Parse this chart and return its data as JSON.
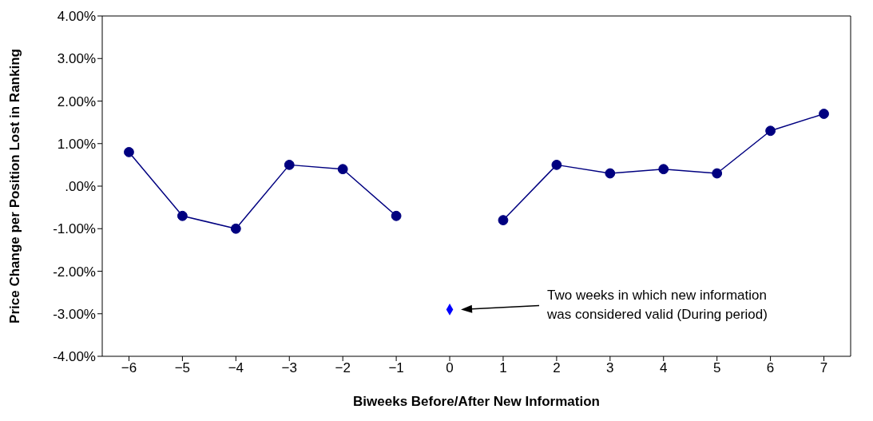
{
  "chart_data": {
    "type": "line",
    "xlabel": "Biweeks Before/After New Information",
    "ylabel": "Price Change per Position Lost in Ranking",
    "categories": [
      "−6",
      "−5",
      "−4",
      "−3",
      "−2",
      "−1",
      "0",
      "1",
      "2",
      "3",
      "4",
      "5",
      "6",
      "7"
    ],
    "series": [
      {
        "color": "#000080",
        "marker": "circle",
        "values": [
          0.8,
          -0.7,
          -1.0,
          0.5,
          0.4,
          -0.7,
          null,
          -0.8,
          0.5,
          0.3,
          0.4,
          0.3,
          1.3,
          1.7
        ]
      },
      {
        "type": "scatter",
        "color": "#0000ff",
        "marker": "diamond",
        "values": [
          null,
          null,
          null,
          null,
          null,
          null,
          -2.9,
          null,
          null,
          null,
          null,
          null,
          null,
          null
        ]
      }
    ],
    "ylim": [
      -4,
      4
    ],
    "yticks": [
      {
        "value": 4,
        "label": "4.00%"
      },
      {
        "value": 3,
        "label": "3.00%"
      },
      {
        "value": 2,
        "label": "2.00%"
      },
      {
        "value": 1,
        "label": "1.00%"
      },
      {
        "value": 0,
        "label": ".00%"
      },
      {
        "value": -1,
        "label": "-1.00%"
      },
      {
        "value": -2,
        "label": "-2.00%"
      },
      {
        "value": -3,
        "label": "-3.00%"
      },
      {
        "value": -4,
        "label": "-4.00%"
      }
    ],
    "grid": false,
    "line_style": "solid",
    "annotations": [
      "Two weeks in which new information\nwas considered valid (During period)"
    ]
  }
}
